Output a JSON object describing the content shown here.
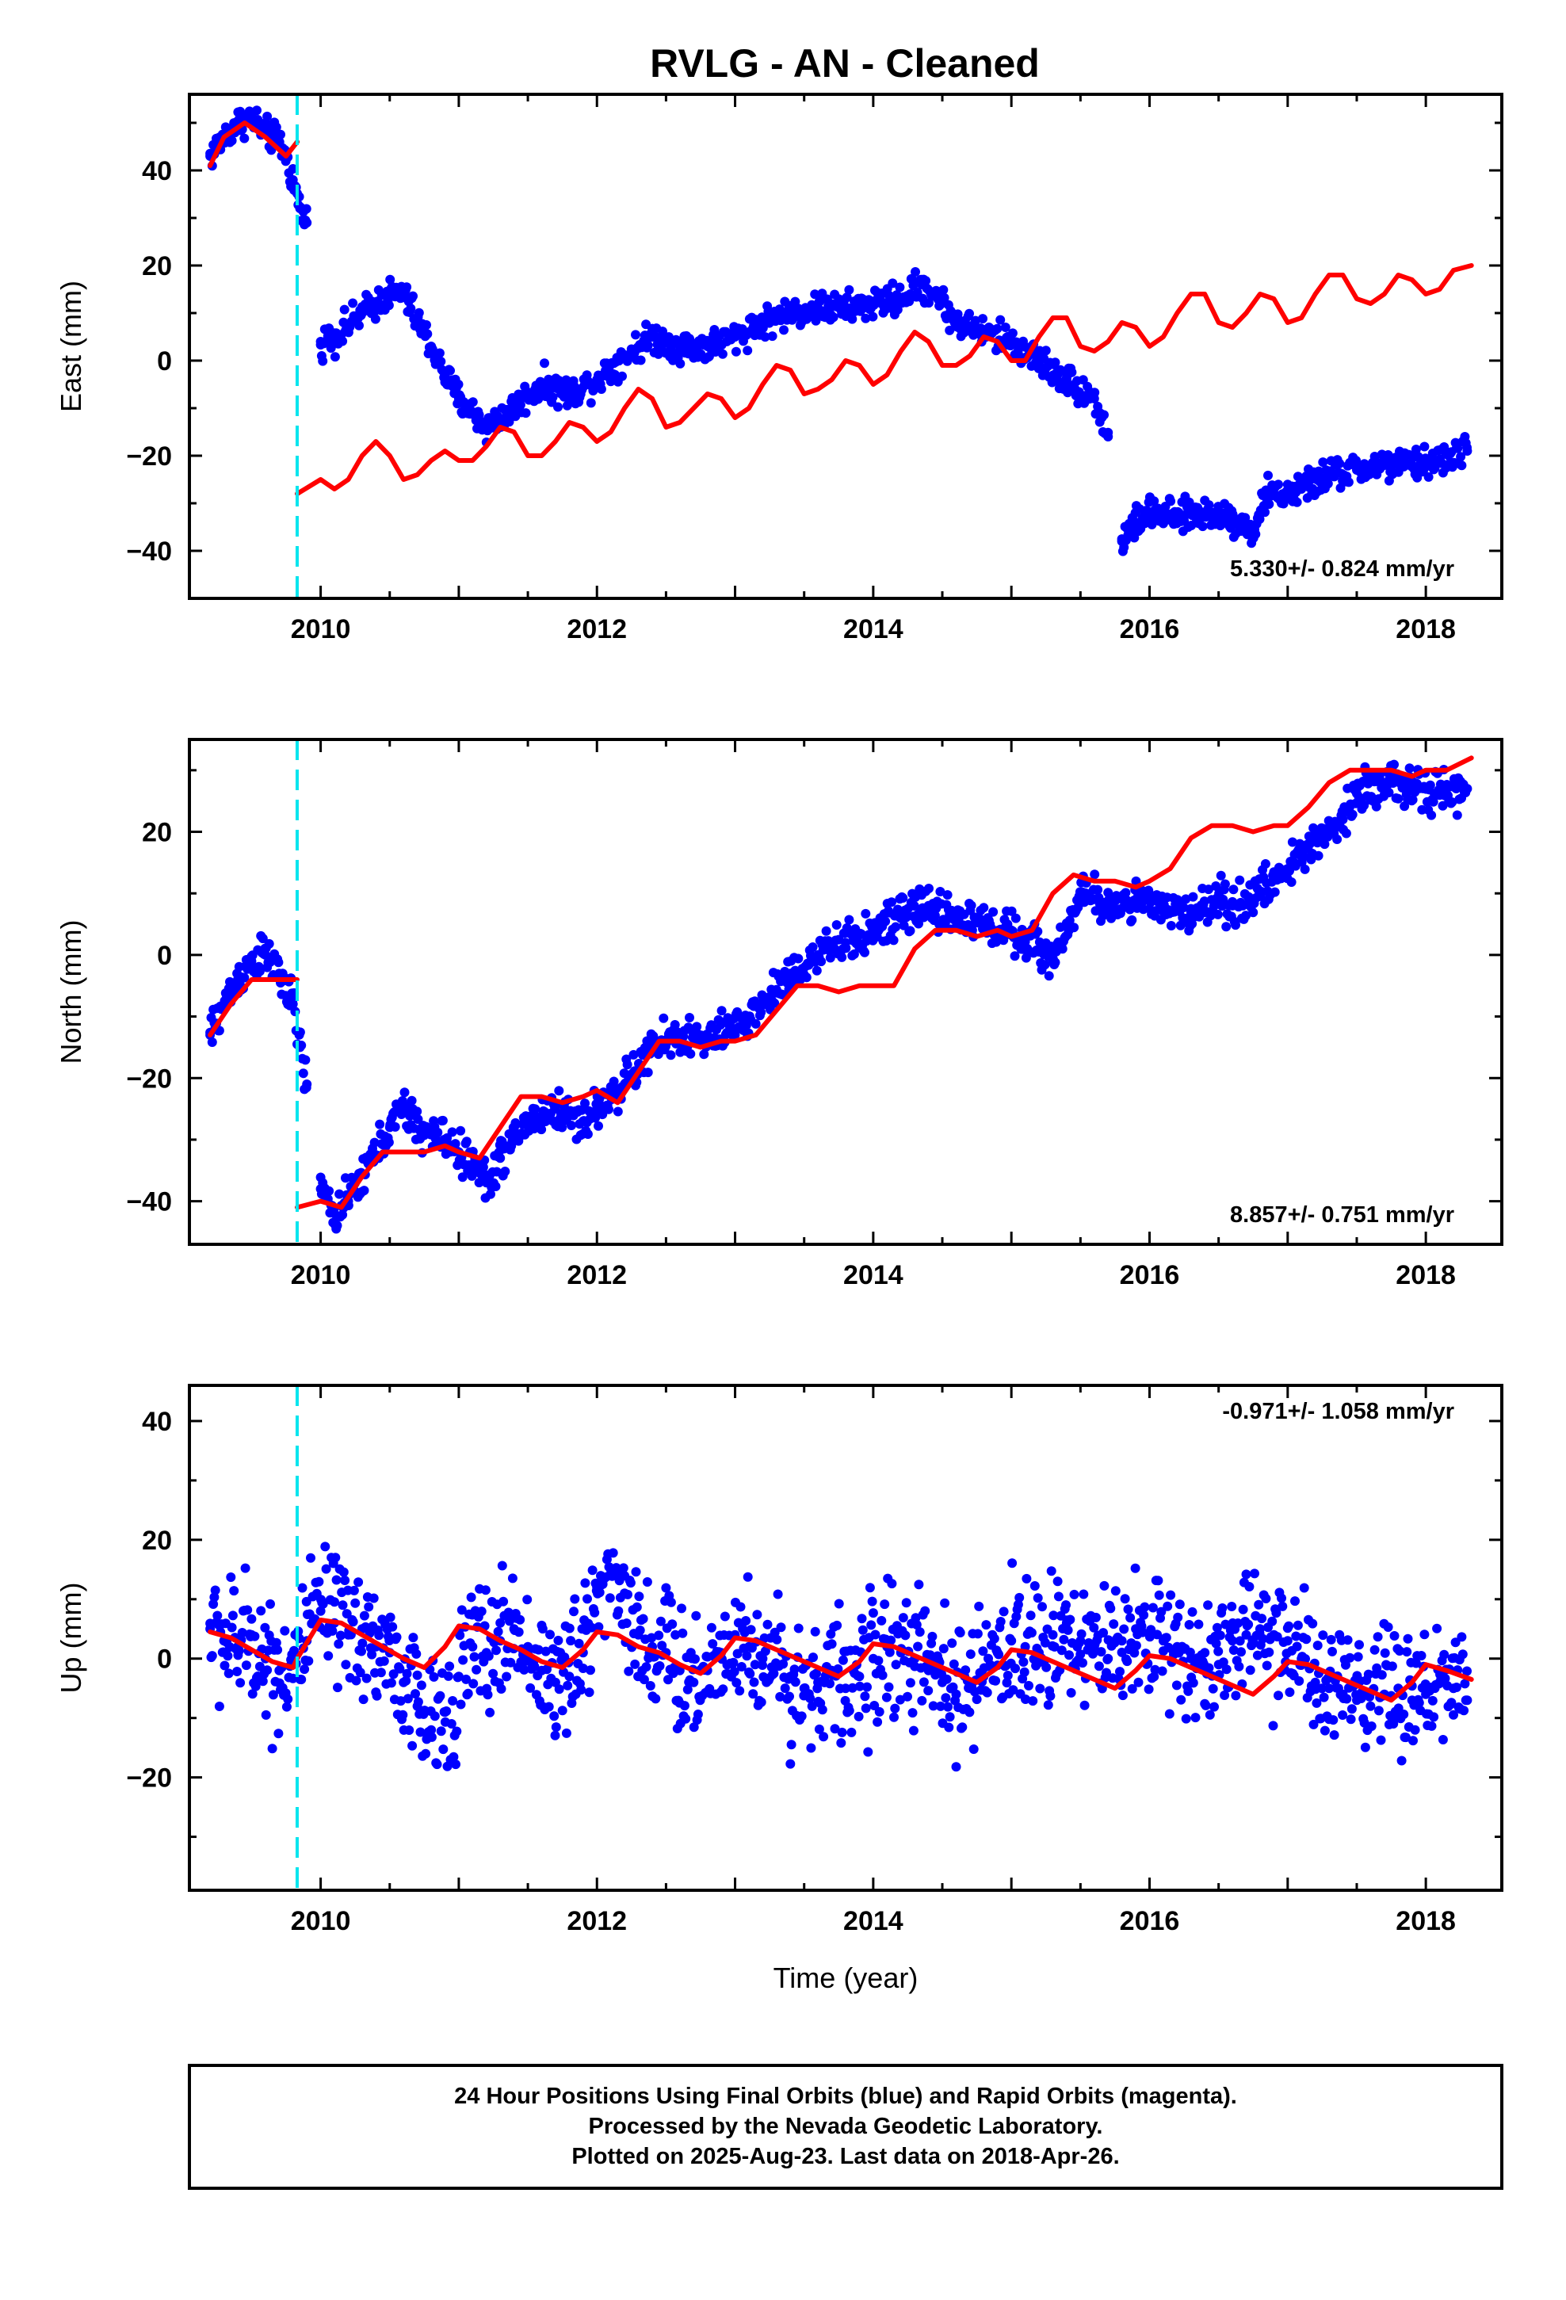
{
  "page": {
    "title": "RVLG  - AN - Cleaned",
    "notes": [
      "24 Hour Positions Using Final Orbits (blue) and Rapid Orbits (magenta).",
      "Processed by the Nevada Geodetic Laboratory.",
      "Plotted on 2025-Aug-23. Last data on 2018-Apr-26."
    ]
  },
  "colors": {
    "data": "#0000ff",
    "model": "#ff0000",
    "event": "#00e5ee",
    "frame": "#000000"
  },
  "chart_data": [
    {
      "type": "scatter",
      "ylabel": "East (mm)",
      "xlabel": "",
      "xlim": [
        2009.05,
        2018.55
      ],
      "ylim": [
        -50,
        56
      ],
      "x_ticks": [
        2010,
        2012,
        2014,
        2016,
        2018
      ],
      "y_ticks": [
        -40,
        -20,
        0,
        20,
        40
      ],
      "rate_label": "5.330+/- 0.824 mm/yr",
      "event_x": 2009.83,
      "data_segments": [
        {
          "x": [
            2009.2,
            2009.3,
            2009.4,
            2009.5,
            2009.6,
            2009.7,
            2009.75,
            2009.8,
            2009.85,
            2009.9
          ],
          "y": [
            43,
            47,
            50,
            51,
            48,
            46,
            43,
            38,
            32,
            29
          ]
        },
        {
          "x": [
            2010.0,
            2010.1,
            2010.3,
            2010.5,
            2010.6,
            2010.8,
            2010.9,
            2011.0,
            2011.2,
            2011.4,
            2011.6,
            2011.8,
            2012.0,
            2012.2,
            2012.4,
            2012.6,
            2012.8,
            2013.0,
            2013.2,
            2013.4,
            2013.6,
            2013.8,
            2014.0,
            2014.2,
            2014.35,
            2014.45,
            2014.6,
            2014.8,
            2015.0,
            2015.2,
            2015.4,
            2015.6,
            2015.7
          ],
          "y": [
            4,
            5,
            10,
            14,
            14,
            3,
            -3,
            -8,
            -14,
            -10,
            -5,
            -7,
            -4,
            1,
            5,
            3,
            3,
            5,
            8,
            10,
            11,
            11,
            12,
            13,
            16,
            14,
            8,
            6,
            4,
            0,
            -4,
            -8,
            -16
          ]
        },
        {
          "x": [
            2015.8,
            2015.9,
            2016.0,
            2016.2,
            2016.4,
            2016.6,
            2016.75,
            2016.85,
            2017.0,
            2017.1,
            2017.3,
            2017.5,
            2017.7,
            2017.9,
            2018.1,
            2018.3
          ],
          "y": [
            -38,
            -34,
            -32,
            -33,
            -32,
            -33,
            -36,
            -28,
            -28,
            -27,
            -24,
            -23,
            -22,
            -22,
            -21,
            -19
          ]
        }
      ],
      "model_segments": [
        {
          "x": [
            2009.2,
            2009.3,
            2009.45,
            2009.6,
            2009.75,
            2009.83
          ],
          "y": [
            41,
            47,
            50,
            47,
            43,
            46
          ]
        },
        {
          "x": [
            2009.83,
            2010.0,
            2010.1,
            2010.2,
            2010.3,
            2010.4,
            2010.5,
            2010.6,
            2010.7,
            2010.8,
            2010.9,
            2011.0,
            2011.1,
            2011.2,
            2011.3,
            2011.4,
            2011.5,
            2011.6,
            2011.7,
            2011.8,
            2011.9,
            2012.0,
            2012.1,
            2012.2,
            2012.3,
            2012.4,
            2012.5,
            2012.6,
            2012.7,
            2012.8,
            2012.9,
            2013.0,
            2013.1,
            2013.2,
            2013.3,
            2013.4,
            2013.5,
            2013.6,
            2013.7,
            2013.8,
            2013.9,
            2014.0,
            2014.1,
            2014.2,
            2014.3,
            2014.4,
            2014.5,
            2014.6,
            2014.7,
            2014.8,
            2014.9,
            2015.0,
            2015.1,
            2015.2,
            2015.3,
            2015.4,
            2015.5,
            2015.6,
            2015.7,
            2015.8,
            2015.9,
            2016.0,
            2016.1,
            2016.2,
            2016.3,
            2016.4,
            2016.5,
            2016.6,
            2016.7,
            2016.8,
            2016.9,
            2017.0,
            2017.1,
            2017.2,
            2017.3,
            2017.4,
            2017.5,
            2017.6,
            2017.7,
            2017.8,
            2017.9,
            2018.0,
            2018.1,
            2018.2,
            2018.33
          ],
          "y": [
            -28,
            -25,
            -27,
            -25,
            -20,
            -17,
            -20,
            -25,
            -24,
            -21,
            -19,
            -21,
            -21,
            -18,
            -14,
            -15,
            -20,
            -20,
            -17,
            -13,
            -14,
            -17,
            -15,
            -10,
            -6,
            -8,
            -14,
            -13,
            -10,
            -7,
            -8,
            -12,
            -10,
            -5,
            -1,
            -2,
            -7,
            -6,
            -4,
            0,
            -1,
            -5,
            -3,
            2,
            6,
            4,
            -1,
            -1,
            1,
            5,
            4,
            0,
            0,
            5,
            9,
            9,
            3,
            2,
            4,
            8,
            7,
            3,
            5,
            10,
            14,
            14,
            8,
            7,
            10,
            14,
            13,
            8,
            9,
            14,
            18,
            18,
            13,
            12,
            14,
            18,
            17,
            14,
            15,
            19,
            20
          ]
        }
      ]
    },
    {
      "type": "scatter",
      "ylabel": "North (mm)",
      "xlabel": "",
      "xlim": [
        2009.05,
        2018.55
      ],
      "ylim": [
        -47,
        35
      ],
      "x_ticks": [
        2010,
        2012,
        2014,
        2016,
        2018
      ],
      "y_ticks": [
        -40,
        -20,
        0,
        20
      ],
      "rate_label": "8.857+/- 0.751 mm/yr",
      "event_x": 2009.83,
      "data_segments": [
        {
          "x": [
            2009.2,
            2009.3,
            2009.4,
            2009.5,
            2009.6,
            2009.7,
            2009.8,
            2009.85,
            2009.9
          ],
          "y": [
            -13,
            -8,
            -4,
            -1,
            0,
            -3,
            -8,
            -15,
            -21
          ]
        },
        {
          "x": [
            2010.0,
            2010.1,
            2010.2,
            2010.35,
            2010.5,
            2010.6,
            2010.75,
            2010.9,
            2011.0,
            2011.1,
            2011.2,
            2011.3,
            2011.5,
            2011.7,
            2011.9,
            2012.0,
            2012.2,
            2012.4,
            2012.6,
            2012.8,
            2013.0,
            2013.2,
            2013.4,
            2013.6,
            2013.8,
            2014.0,
            2014.2,
            2014.4,
            2014.6,
            2014.8,
            2015.0,
            2015.1,
            2015.3,
            2015.5,
            2015.7,
            2015.9,
            2016.1,
            2016.3,
            2016.5,
            2016.6,
            2016.8,
            2017.0,
            2017.1,
            2017.2,
            2017.4,
            2017.5,
            2017.7,
            2017.9,
            2018.1,
            2018.3
          ],
          "y": [
            -38,
            -42,
            -40,
            -34,
            -28,
            -25,
            -29,
            -30,
            -32,
            -34,
            -37,
            -33,
            -27,
            -25,
            -27,
            -25,
            -21,
            -15,
            -13,
            -14,
            -12,
            -8,
            -3,
            0,
            2,
            4,
            6,
            8,
            6,
            5,
            4,
            3,
            -1,
            10,
            8,
            9,
            7,
            7,
            9,
            8,
            10,
            14,
            16,
            19,
            22,
            27,
            28,
            27,
            26,
            27
          ]
        }
      ],
      "model_segments": [
        {
          "x": [
            2009.2,
            2009.35,
            2009.5,
            2009.65,
            2009.83
          ],
          "y": [
            -13,
            -8,
            -4,
            -4,
            -4
          ]
        },
        {
          "x": [
            2009.83,
            2010.0,
            2010.15,
            2010.3,
            2010.45,
            2010.6,
            2010.75,
            2010.9,
            2011.0,
            2011.15,
            2011.3,
            2011.45,
            2011.6,
            2011.75,
            2011.9,
            2012.0,
            2012.15,
            2012.3,
            2012.45,
            2012.6,
            2012.75,
            2012.9,
            2013.0,
            2013.15,
            2013.3,
            2013.45,
            2013.6,
            2013.75,
            2013.9,
            2014.0,
            2014.15,
            2014.3,
            2014.45,
            2014.6,
            2014.75,
            2014.9,
            2015.0,
            2015.15,
            2015.3,
            2015.45,
            2015.6,
            2015.75,
            2015.9,
            2016.0,
            2016.15,
            2016.3,
            2016.45,
            2016.6,
            2016.75,
            2016.9,
            2017.0,
            2017.15,
            2017.3,
            2017.45,
            2017.6,
            2017.75,
            2017.9,
            2018.0,
            2018.15,
            2018.33
          ],
          "y": [
            -41,
            -40,
            -41,
            -36,
            -32,
            -32,
            -32,
            -31,
            -32,
            -33,
            -28,
            -23,
            -23,
            -24,
            -23,
            -22,
            -24,
            -19,
            -14,
            -14,
            -15,
            -14,
            -14,
            -13,
            -9,
            -5,
            -5,
            -6,
            -5,
            -5,
            -5,
            1,
            4,
            4,
            3,
            4,
            3,
            4,
            10,
            13,
            12,
            12,
            11,
            12,
            14,
            19,
            21,
            21,
            20,
            21,
            21,
            24,
            28,
            30,
            30,
            30,
            29,
            30,
            30,
            32
          ]
        }
      ]
    },
    {
      "type": "scatter",
      "ylabel": "Up (mm)",
      "xlabel": "Time (year)",
      "xlim": [
        2009.05,
        2018.55
      ],
      "ylim": [
        -39,
        46
      ],
      "x_ticks": [
        2010,
        2012,
        2014,
        2016,
        2018
      ],
      "y_ticks": [
        -20,
        0,
        20,
        40
      ],
      "rate_label": "-0.971+/- 1.058 mm/yr",
      "event_x": 2009.83,
      "data_segments": [
        {
          "x": [
            2009.2,
            2009.3,
            2009.4,
            2009.5,
            2009.6,
            2009.7,
            2009.8,
            2009.9,
            2010.0,
            2010.1,
            2010.2,
            2010.3,
            2010.4,
            2010.5,
            2010.6,
            2010.7,
            2010.8,
            2010.9,
            2011.0,
            2011.1,
            2011.2,
            2011.3,
            2011.4,
            2011.5,
            2011.6,
            2011.7,
            2011.8,
            2011.9,
            2012.0,
            2012.1,
            2012.2,
            2012.3,
            2012.4,
            2012.5,
            2012.6,
            2012.7,
            2012.8,
            2012.9,
            2013.0,
            2013.1,
            2013.2,
            2013.3,
            2013.4,
            2013.5,
            2013.6,
            2013.7,
            2013.8,
            2013.9,
            2014.0,
            2014.1,
            2014.2,
            2014.3,
            2014.4,
            2014.5,
            2014.6,
            2014.7,
            2014.8,
            2014.9,
            2015.0,
            2015.1,
            2015.2,
            2015.3,
            2015.4,
            2015.5,
            2015.6,
            2015.7,
            2015.8,
            2015.9,
            2016.0,
            2016.1,
            2016.2,
            2016.3,
            2016.4,
            2016.5,
            2016.6,
            2016.7,
            2016.8,
            2016.9,
            2017.0,
            2017.1,
            2017.2,
            2017.3,
            2017.4,
            2017.5,
            2017.6,
            2017.7,
            2017.8,
            2017.9,
            2018.0,
            2018.1,
            2018.2,
            2018.3
          ],
          "y": [
            5,
            3,
            2,
            4,
            0,
            -2,
            -1,
            3,
            8,
            6,
            4,
            5,
            2,
            1,
            -4,
            -8,
            -12,
            -9,
            -3,
            2,
            1,
            3,
            5,
            2,
            -2,
            -4,
            -3,
            1,
            12,
            14,
            11,
            4,
            2,
            1,
            -2,
            -4,
            -2,
            1,
            4,
            2,
            0,
            -1,
            -3,
            -5,
            -4,
            -2,
            -5,
            -3,
            0,
            2,
            1,
            0,
            -2,
            -4,
            -6,
            -5,
            -3,
            1,
            3,
            2,
            1,
            4,
            6,
            3,
            2,
            0,
            3,
            5,
            4,
            3,
            2,
            0,
            1,
            -1,
            3,
            4,
            5,
            4,
            3,
            0,
            -4,
            -5,
            -6,
            -7,
            -8,
            -6,
            -5,
            -7,
            -6,
            -4,
            -5,
            -7
          ]
        }
      ],
      "model_segments": [
        {
          "x": [
            2009.2,
            2009.35,
            2009.5,
            2009.65,
            2009.8,
            2009.83,
            2010.0,
            2010.15,
            2010.3,
            2010.45,
            2010.6,
            2010.75,
            2010.9,
            2011.0,
            2011.15,
            2011.3,
            2011.45,
            2011.6,
            2011.75,
            2011.9,
            2012.0,
            2012.15,
            2012.3,
            2012.45,
            2012.6,
            2012.75,
            2012.9,
            2013.0,
            2013.15,
            2013.3,
            2013.45,
            2013.6,
            2013.75,
            2013.9,
            2014.0,
            2014.15,
            2014.3,
            2014.45,
            2014.6,
            2014.75,
            2014.9,
            2015.0,
            2015.15,
            2015.3,
            2015.45,
            2015.6,
            2015.75,
            2015.9,
            2016.0,
            2016.15,
            2016.3,
            2016.45,
            2016.6,
            2016.75,
            2016.9,
            2017.0,
            2017.15,
            2017.3,
            2017.45,
            2017.6,
            2017.75,
            2017.9,
            2018.0,
            2018.15,
            2018.33
          ],
          "y": [
            4.5,
            3.5,
            1.5,
            -0.5,
            -1.5,
            0,
            6.5,
            6,
            4,
            2,
            0,
            -1.5,
            2,
            5.5,
            5,
            3,
            1.5,
            -0.5,
            -1.5,
            1.5,
            4.5,
            4,
            2,
            1,
            -1,
            -2.5,
            0.5,
            3.5,
            3,
            1.5,
            0,
            -1.5,
            -3,
            -0.5,
            2.5,
            2,
            0.5,
            -1,
            -2.5,
            -4,
            -1.5,
            1.5,
            1,
            -0.5,
            -2,
            -3.5,
            -5,
            -2,
            0.5,
            0,
            -1.5,
            -3,
            -4.5,
            -6,
            -3,
            -0.5,
            -1,
            -2.5,
            -4,
            -5.5,
            -7,
            -4,
            -1,
            -2,
            -3.5
          ]
        }
      ]
    }
  ]
}
